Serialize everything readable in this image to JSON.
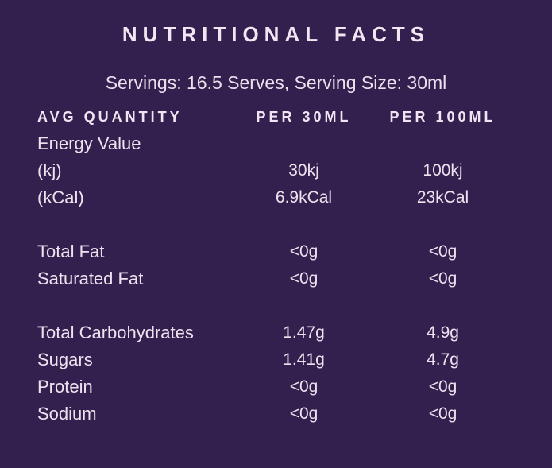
{
  "colors": {
    "background": "#33204E",
    "title_text": "#F3E6F3",
    "body_text": "#EFE2EF"
  },
  "title": "NUTRITIONAL FACTS",
  "servings_line": "Servings: 16.5 Serves, Serving Size: 30ml",
  "table": {
    "headers": [
      "AVG QUANTITY",
      "PER 30ML",
      "PER 100ML"
    ],
    "rows": [
      {
        "label": "Energy Value",
        "per_30ml": "",
        "per_100ml": ""
      },
      {
        "label": "(kj)",
        "per_30ml": "30kj",
        "per_100ml": "100kj"
      },
      {
        "label": "(kCal)",
        "per_30ml": "6.9kCal",
        "per_100ml": "23kCal"
      },
      {
        "label": "Total Fat",
        "per_30ml": "<0g",
        "per_100ml": "<0g"
      },
      {
        "label": "Saturated Fat",
        "per_30ml": "<0g",
        "per_100ml": "<0g"
      },
      {
        "label": "Total Carbohydrates",
        "per_30ml": "1.47g",
        "per_100ml": "4.9g"
      },
      {
        "label": "Sugars",
        "per_30ml": "1.41g",
        "per_100ml": "4.7g"
      },
      {
        "label": "Protein",
        "per_30ml": "<0g",
        "per_100ml": "<0g"
      },
      {
        "label": "Sodium",
        "per_30ml": "<0g",
        "per_100ml": "<0g"
      }
    ]
  }
}
